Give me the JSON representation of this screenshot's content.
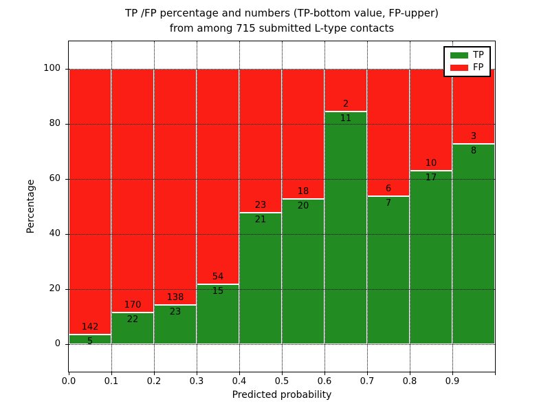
{
  "title": {
    "line1": "TP /FP percentage and numbers (TP-bottom value, FP-upper)",
    "line2": "from among 715 submitted L-type contacts"
  },
  "chart_data": {
    "type": "bar",
    "stacked": true,
    "normalized": "each bin stacked to 100%",
    "bins": [
      "0.0-0.1",
      "0.1-0.2",
      "0.2-0.3",
      "0.3-0.4",
      "0.4-0.5",
      "0.5-0.6",
      "0.6-0.7",
      "0.7-0.8",
      "0.8-0.9",
      "0.9-1.0"
    ],
    "series": [
      {
        "name": "TP",
        "color": "#228b22",
        "values": [
          5,
          22,
          23,
          15,
          21,
          20,
          11,
          7,
          17,
          8
        ]
      },
      {
        "name": "FP",
        "color": "#fa1e15",
        "values": [
          142,
          170,
          138,
          54,
          23,
          18,
          2,
          6,
          10,
          3
        ]
      }
    ],
    "total_contacts": 715,
    "xlabel": "Predicted probability",
    "ylabel": "Percentage",
    "x_tick_labels": [
      "0.0",
      "0.1",
      "0.2",
      "0.3",
      "0.4",
      "0.5",
      "0.6",
      "0.7",
      "0.8",
      "0.9"
    ],
    "y_ticks": [
      0,
      20,
      40,
      60,
      80,
      100
    ],
    "xlim": [
      0.0,
      1.0
    ],
    "ylim": [
      -10,
      110
    ],
    "grid": "dotted",
    "legend": {
      "position": "upper right",
      "entries": [
        {
          "label": "TP",
          "color": "#228b22"
        },
        {
          "label": "FP",
          "color": "#fa1e15"
        }
      ]
    }
  }
}
